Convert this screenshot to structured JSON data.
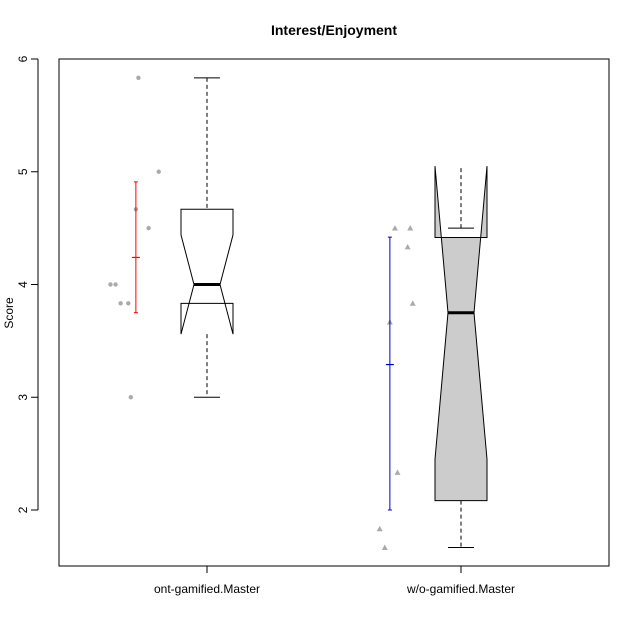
{
  "chart_data": {
    "type": "box",
    "title": "Interest/Enjoyment",
    "xlabel": "",
    "ylabel": "Score",
    "ylim": [
      1.5,
      6.0
    ],
    "yticks": [
      2,
      3,
      4,
      5,
      6
    ],
    "grid": false,
    "notched": true,
    "categories": [
      "ont-gamified.Master",
      "w/o-gamified.Master"
    ],
    "groups": [
      {
        "name": "ont-gamified.Master",
        "box": {
          "whisker_low": 3.0,
          "q1": 3.833,
          "median": 4.0,
          "q3": 4.667,
          "whisker_high": 5.833,
          "notch_low": 3.56,
          "notch_high": 4.44
        },
        "fill": "#ffffff",
        "points": [
          {
            "x_offset": -0.38,
            "y": 4.0
          },
          {
            "x_offset": -0.36,
            "y": 4.0
          },
          {
            "x_offset": -0.34,
            "y": 3.833
          },
          {
            "x_offset": -0.31,
            "y": 3.833
          },
          {
            "x_offset": -0.3,
            "y": 3.0
          },
          {
            "x_offset": -0.28,
            "y": 4.667
          },
          {
            "x_offset": -0.27,
            "y": 5.833
          },
          {
            "x_offset": -0.23,
            "y": 4.5
          },
          {
            "x_offset": -0.19,
            "y": 5.0
          }
        ],
        "point_shape": "circle",
        "error_bar": {
          "mean": 4.24,
          "lower": 3.75,
          "upper": 4.91,
          "color": "#ff0000",
          "x_offset": -0.28
        }
      },
      {
        "name": "w/o-gamified.Master",
        "box": {
          "whisker_low": 1.667,
          "q1": 2.083,
          "median": 3.75,
          "q3": 4.417,
          "whisker_high": 4.5,
          "notch_low": 2.45,
          "notch_high": 5.05
        },
        "fill": "#cccccc",
        "points": [
          {
            "x_offset": -0.32,
            "y": 1.833
          },
          {
            "x_offset": -0.3,
            "y": 1.667
          },
          {
            "x_offset": -0.28,
            "y": 3.667
          },
          {
            "x_offset": -0.26,
            "y": 4.5
          },
          {
            "x_offset": -0.25,
            "y": 2.333
          },
          {
            "x_offset": -0.21,
            "y": 4.333
          },
          {
            "x_offset": -0.2,
            "y": 4.5
          },
          {
            "x_offset": -0.19,
            "y": 3.833
          }
        ],
        "point_shape": "triangle",
        "error_bar": {
          "mean": 3.29,
          "lower": 2.0,
          "upper": 4.42,
          "color": "#0000cc",
          "x_offset": -0.28
        }
      }
    ]
  }
}
